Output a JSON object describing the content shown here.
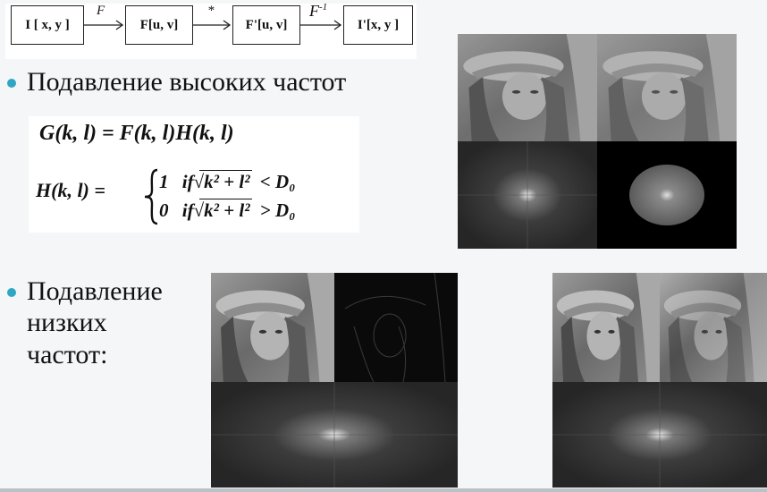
{
  "flow": {
    "box1": "I [ x, y ]",
    "box2": "F[u, v]",
    "box3": "F'[u, v]",
    "box4": "I'[x, y ]",
    "arrow1": "F",
    "arrow2": "*",
    "arrow3": "F",
    "arrow3_sup": "-1"
  },
  "bullets": {
    "high": "Подавление высоких частот",
    "low_1": "Подавление",
    "low_2": "низких",
    "low_3": "частот:"
  },
  "formula": {
    "g_eq": "G(k, l) = F(k, l)H(k, l)",
    "h_lhs": "H(k, l) =",
    "case1_val": "1",
    "case2_val": "0",
    "cond_if": "if",
    "radicand": "k² + l²",
    "lt": "< D₀",
    "gt": "> D₀"
  },
  "colors": {
    "bullet": "#2fa6c4",
    "background": "#f4f6f7"
  }
}
